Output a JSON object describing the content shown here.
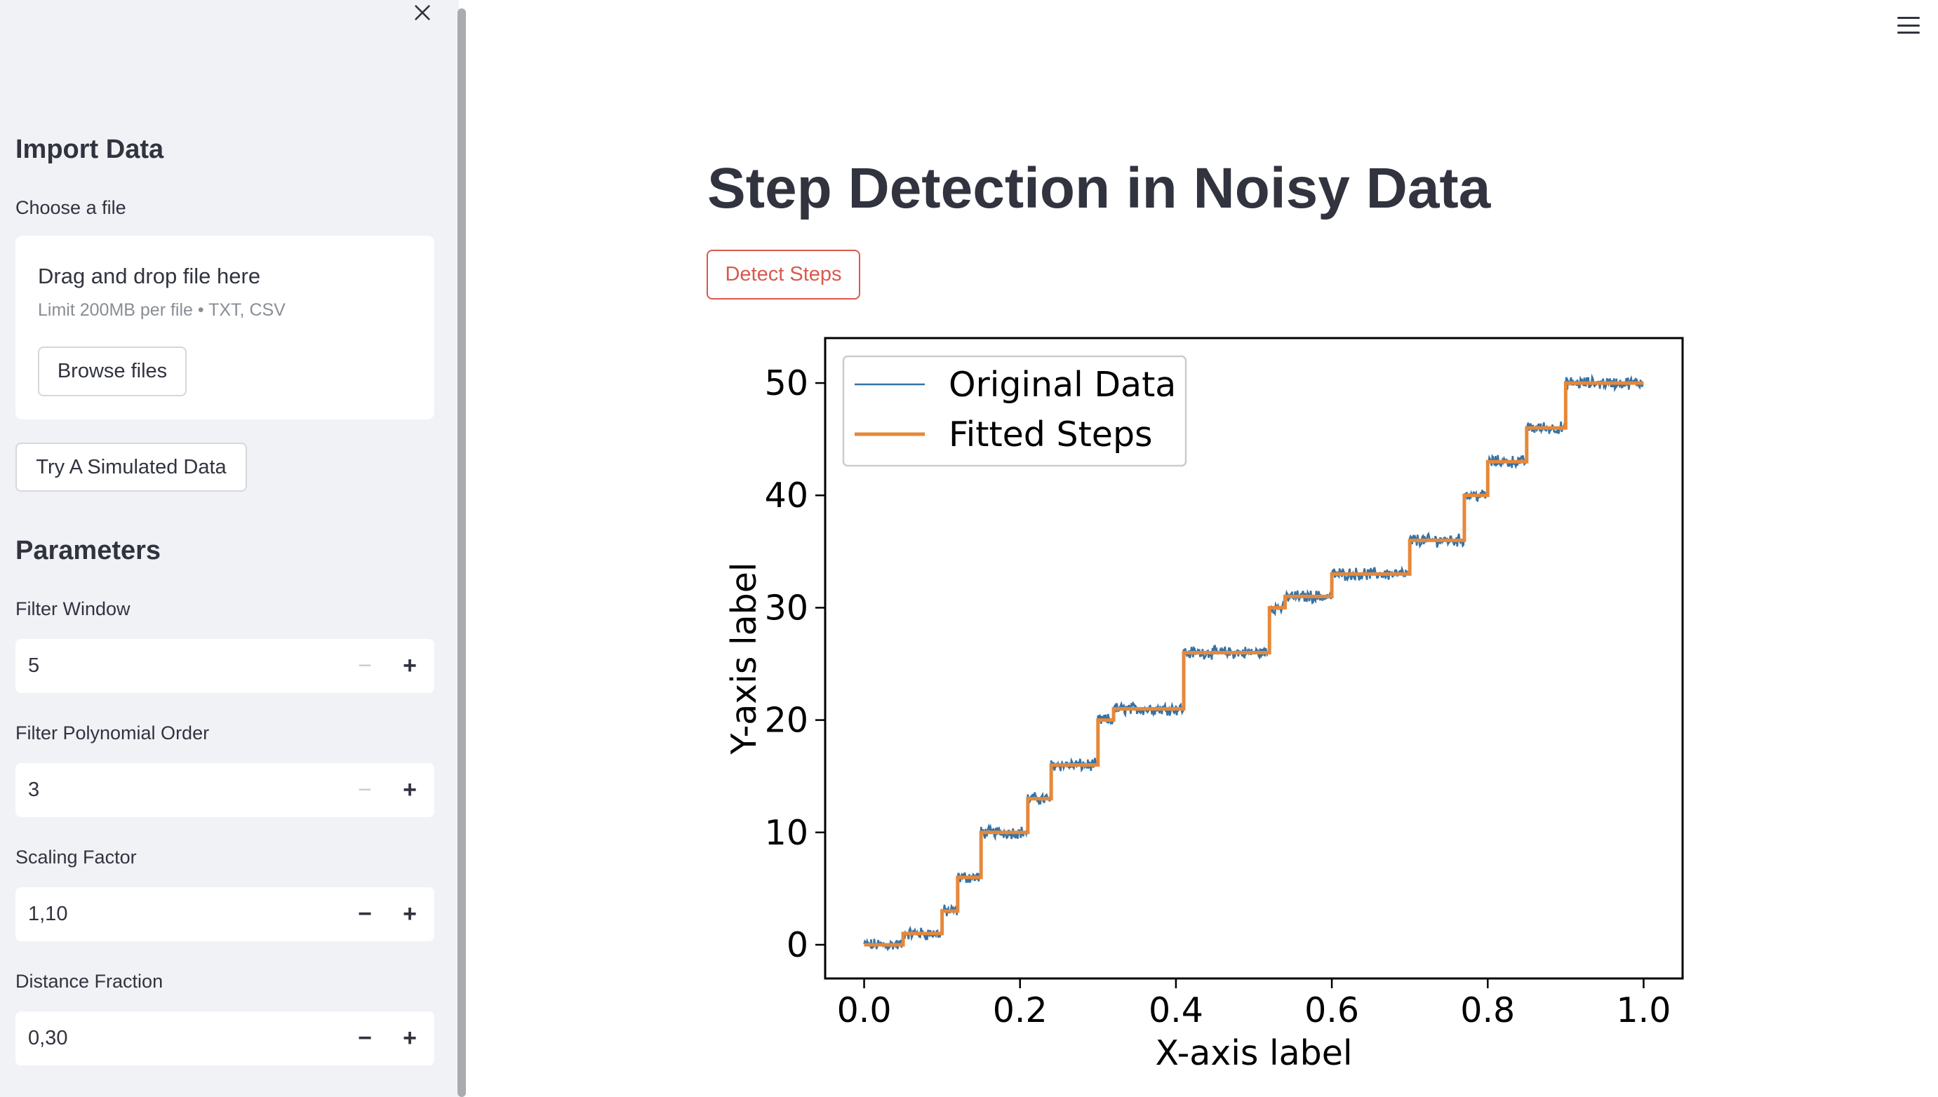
{
  "sidebar": {
    "close_icon": "close-icon",
    "import_heading": "Import Data",
    "choose_label": "Choose a file",
    "dropzone_title": "Drag and drop file here",
    "dropzone_limit": "Limit 200MB per file • TXT, CSV",
    "browse_label": "Browse files",
    "simulated_label": "Try A Simulated Data",
    "parameters_heading": "Parameters",
    "params": [
      {
        "label": "Filter Window",
        "value": "5",
        "minus_enabled": false
      },
      {
        "label": "Filter Polynomial Order",
        "value": "3",
        "minus_enabled": false
      },
      {
        "label": "Scaling Factor",
        "value": "1,10",
        "minus_enabled": true
      },
      {
        "label": "Distance Fraction",
        "value": "0,30",
        "minus_enabled": true
      }
    ]
  },
  "header": {
    "menu_icon": "hamburger-menu-icon"
  },
  "main": {
    "title": "Step Detection in Noisy Data",
    "detect_label": "Detect Steps"
  },
  "colors": {
    "original": "#3572a5",
    "fitted": "#e6883a",
    "accent": "#d8594f"
  },
  "chart_data": {
    "type": "line",
    "title": "",
    "xlabel": "X-axis label",
    "ylabel": "Y-axis label",
    "xlim": [
      -0.05,
      1.05
    ],
    "ylim": [
      -3,
      54
    ],
    "xticks": [
      "0.0",
      "0.2",
      "0.4",
      "0.6",
      "0.8",
      "1.0"
    ],
    "yticks": [
      "0",
      "10",
      "20",
      "30",
      "40",
      "50"
    ],
    "legend_position": "top-left",
    "series": [
      {
        "name": "Original Data",
        "style": "noisy"
      },
      {
        "name": "Fitted Steps",
        "style": "step"
      }
    ],
    "steps": [
      {
        "x": 0.0,
        "y": 0
      },
      {
        "x": 0.05,
        "y": 1
      },
      {
        "x": 0.1,
        "y": 3
      },
      {
        "x": 0.12,
        "y": 6
      },
      {
        "x": 0.15,
        "y": 10
      },
      {
        "x": 0.21,
        "y": 13
      },
      {
        "x": 0.24,
        "y": 16
      },
      {
        "x": 0.3,
        "y": 20
      },
      {
        "x": 0.32,
        "y": 21
      },
      {
        "x": 0.41,
        "y": 26
      },
      {
        "x": 0.52,
        "y": 30
      },
      {
        "x": 0.54,
        "y": 31
      },
      {
        "x": 0.6,
        "y": 33
      },
      {
        "x": 0.7,
        "y": 36
      },
      {
        "x": 0.77,
        "y": 40
      },
      {
        "x": 0.8,
        "y": 43
      },
      {
        "x": 0.85,
        "y": 46
      },
      {
        "x": 0.9,
        "y": 50
      }
    ],
    "x_end": 1.0,
    "noise_amplitude": 0.45
  }
}
